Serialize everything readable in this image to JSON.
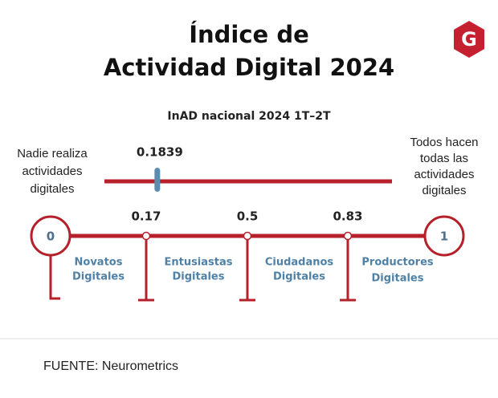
{
  "title": [
    "Índice de",
    "Actividad Digital 2024"
  ],
  "logo": "G",
  "subtitle": "InAD nacional 2024 1T–2T",
  "marker": {
    "value": 0.1839
  },
  "left_note": [
    "Nadie realiza",
    "actividades",
    "digitales"
  ],
  "right_note": [
    "Todos hacen",
    "todas las",
    "actividades",
    "digitales"
  ],
  "scale": {
    "range": [
      0,
      1
    ],
    "points": [
      0,
      0.17,
      0.5,
      0.83,
      1
    ]
  },
  "segments": [
    [
      "Novatos",
      "Digitales"
    ],
    [
      "Entusiastas",
      "Digitales"
    ],
    [
      "Ciudadanos",
      "Digitales"
    ],
    [
      "Productores",
      "Digitales"
    ]
  ],
  "source": "FUENTE: Neurometrics"
}
